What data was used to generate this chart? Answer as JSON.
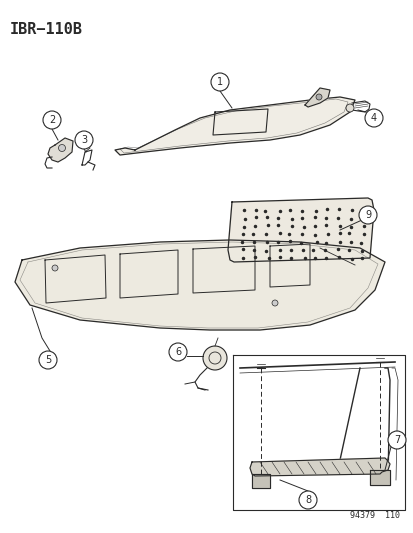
{
  "title": "IBR−110B",
  "background_color": "#ffffff",
  "line_color": "#2a2a2a",
  "watermark": "94379  110",
  "fig_width": 4.14,
  "fig_height": 5.33,
  "dpi": 100
}
